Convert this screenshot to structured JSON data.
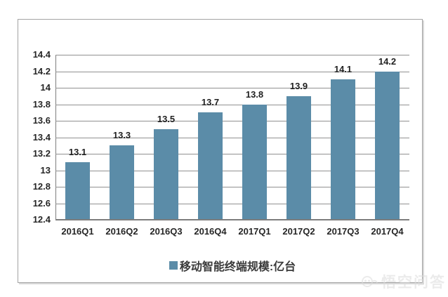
{
  "chart_data": {
    "type": "bar",
    "title": "",
    "categories": [
      "2016Q1",
      "2016Q2",
      "2016Q3",
      "2016Q4",
      "2017Q1",
      "2017Q2",
      "2017Q3",
      "2017Q4"
    ],
    "values": [
      13.1,
      13.3,
      13.5,
      13.7,
      13.8,
      13.9,
      14.1,
      14.2
    ],
    "value_labels": [
      "13.1",
      "13.3",
      "13.5",
      "13.7",
      "13.8",
      "13.9",
      "14.1",
      "14.2"
    ],
    "xlabel": "",
    "ylabel": "",
    "ylim": [
      12.4,
      14.4
    ],
    "ytick_step": 0.2,
    "ytick_labels": [
      "14.4",
      "14.2",
      "14",
      "13.8",
      "13.6",
      "13.4",
      "13.2",
      "13",
      "12.8",
      "12.6",
      "12.4"
    ],
    "grid": true,
    "bar_color": "#5b8ca8",
    "gridline_color": "#919191",
    "axis_color": "#7d7d7d",
    "legend": {
      "label": "移动智能终端规模:亿台",
      "position": "bottom",
      "marker_color": "#5b8ca8"
    }
  },
  "watermark": {
    "text": "悟空问答",
    "icon": "wukong-logo",
    "color": "#dcdcdc"
  }
}
